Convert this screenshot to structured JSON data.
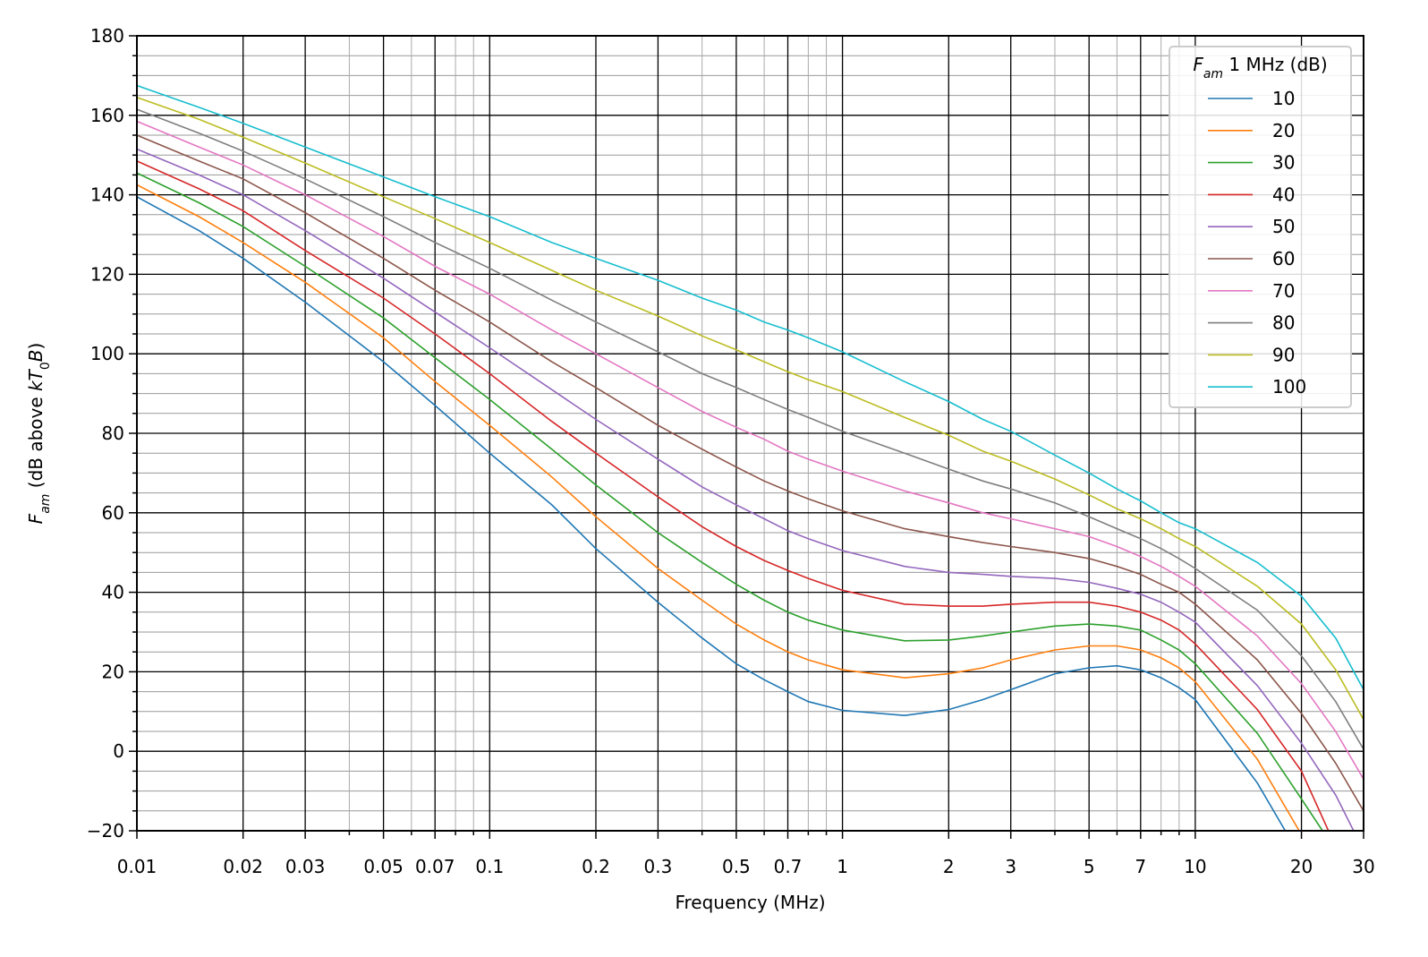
{
  "chart_data": {
    "type": "line",
    "xlabel": "Frequency (MHz)",
    "ylabel": [
      {
        "text": "F",
        "italic": true
      },
      {
        "text": "am",
        "italic": true,
        "sub": true
      },
      {
        "text": " (dB above "
      },
      {
        "text": "kT",
        "italic": true
      },
      {
        "text": "0",
        "sub": true
      },
      {
        "text": "B",
        "italic": true
      },
      {
        "text": ")"
      }
    ],
    "legend_title": [
      {
        "text": "F",
        "italic": true
      },
      {
        "text": "am",
        "italic": true,
        "sub": true
      },
      {
        "text": " 1 MHz (dB)"
      }
    ],
    "legend": "upper right",
    "xscale": "log",
    "grid": true,
    "xlim": [
      0.01,
      30
    ],
    "ylim": [
      -20,
      180
    ],
    "xticks": [
      0.01,
      0.02,
      0.03,
      0.05,
      0.07,
      0.1,
      0.2,
      0.3,
      0.5,
      0.7,
      1,
      2,
      3,
      5,
      7,
      10,
      20,
      30
    ],
    "xminor": [
      0.04,
      0.06,
      0.08,
      0.09,
      0.4,
      0.6,
      0.8,
      0.9,
      4,
      6,
      8,
      9
    ],
    "yticks": [
      {
        "value": -20,
        "label": "−20"
      },
      0,
      20,
      40,
      60,
      80,
      100,
      120,
      140,
      160,
      180
    ],
    "yminor": [
      -15,
      -10,
      -5,
      5,
      10,
      15,
      25,
      30,
      35,
      45,
      50,
      55,
      65,
      70,
      75,
      85,
      90,
      95,
      105,
      110,
      115,
      125,
      130,
      135,
      145,
      150,
      155,
      165,
      170,
      175
    ],
    "x": [
      0.01,
      0.015,
      0.02,
      0.03,
      0.05,
      0.07,
      0.1,
      0.15,
      0.2,
      0.3,
      0.4,
      0.5,
      0.6,
      0.7,
      0.8,
      1,
      1.5,
      2,
      2.5,
      3,
      4,
      5,
      6,
      7,
      8,
      9,
      10,
      15,
      20,
      25,
      30
    ],
    "series": [
      {
        "name": "10",
        "color": "#1f77b4",
        "values": [
          139.5,
          131,
          124,
          113,
          98,
          87,
          75,
          62,
          51,
          37.5,
          28.5,
          22,
          18,
          15,
          12.5,
          10.3,
          9,
          10.5,
          13,
          15.5,
          19.5,
          21,
          21.5,
          20.5,
          18.5,
          16,
          13,
          -8,
          -27,
          null,
          null
        ]
      },
      {
        "name": "20",
        "color": "#ff7f0e",
        "values": [
          142.5,
          134.5,
          128,
          118,
          104,
          93,
          82,
          69,
          59,
          46,
          38,
          32,
          28,
          25,
          23,
          20.5,
          18.5,
          19.5,
          21,
          23,
          25.5,
          26.5,
          26.5,
          25.5,
          23.5,
          21,
          17.5,
          -2,
          -21,
          null,
          null
        ]
      },
      {
        "name": "30",
        "color": "#2ca02c",
        "values": [
          145.5,
          138,
          132,
          122,
          109,
          99,
          88.5,
          76,
          67,
          55,
          47.5,
          42,
          38,
          35,
          33,
          30.5,
          27.8,
          28,
          29,
          30,
          31.5,
          32,
          31.5,
          30.5,
          28,
          25.5,
          22,
          4.5,
          -12,
          -25,
          null
        ]
      },
      {
        "name": "40",
        "color": "#d62728",
        "values": [
          148.5,
          141.5,
          136,
          126,
          114,
          105,
          95,
          83,
          75,
          64,
          56.5,
          51.5,
          48,
          45.5,
          43.5,
          40.5,
          37,
          36.5,
          36.5,
          37,
          37.5,
          37.5,
          36.5,
          35,
          33,
          30.5,
          27,
          10.5,
          -5,
          -24,
          null
        ]
      },
      {
        "name": "50",
        "color": "#9467bd",
        "values": [
          151.5,
          145,
          140,
          131,
          119,
          110.5,
          101.5,
          91,
          83.5,
          73.5,
          66.5,
          62,
          58.5,
          55.5,
          53.5,
          50.5,
          46.5,
          45,
          44.5,
          44,
          43.5,
          42.5,
          41,
          39.5,
          37.5,
          35,
          32.5,
          16.5,
          2,
          -11,
          -25
        ]
      },
      {
        "name": "60",
        "color": "#8c564b",
        "values": [
          155,
          148.5,
          144,
          135.5,
          124,
          116,
          108,
          98,
          91.5,
          82,
          76,
          71.5,
          68,
          65.5,
          63.5,
          60.5,
          56,
          54,
          52.5,
          51.5,
          50,
          48.5,
          46.5,
          44.5,
          42,
          40,
          37,
          23,
          9.5,
          -3,
          -15
        ]
      },
      {
        "name": "70",
        "color": "#e377c2",
        "values": [
          158.5,
          152,
          147.5,
          140,
          129.5,
          122,
          115,
          106,
          100,
          91.5,
          85.5,
          81.5,
          78.5,
          75.5,
          73.5,
          70.5,
          65.5,
          62.5,
          60,
          58.5,
          56,
          54,
          51.5,
          49,
          46.5,
          44,
          41.5,
          29,
          17,
          5,
          -7
        ]
      },
      {
        "name": "80",
        "color": "#7f7f7f",
        "values": [
          161.5,
          155.5,
          151,
          144,
          134.5,
          128,
          121.5,
          113.5,
          108,
          100.5,
          95,
          91.5,
          88.5,
          86,
          84,
          80.5,
          75,
          71,
          68,
          66,
          62.5,
          59,
          56,
          53.5,
          51,
          48.5,
          46,
          35.5,
          24,
          12.5,
          0.5
        ]
      },
      {
        "name": "90",
        "color": "#bcbd22",
        "values": [
          164.5,
          159,
          154.5,
          148,
          139.5,
          134,
          128,
          121,
          116,
          109.5,
          104.5,
          101,
          98,
          95.5,
          93.5,
          90.5,
          84,
          79.5,
          75.5,
          73,
          68.5,
          64.5,
          61,
          58.5,
          56,
          53.5,
          51.5,
          41.5,
          32,
          20.5,
          8
        ]
      },
      {
        "name": "100",
        "color": "#17becf",
        "values": [
          167.5,
          162,
          158,
          152,
          144.5,
          139.5,
          134.5,
          128,
          124,
          118.5,
          114,
          111,
          108,
          106,
          104,
          100.5,
          93,
          88,
          83.5,
          80.5,
          74.5,
          70,
          66,
          63,
          60,
          57.5,
          56,
          47.5,
          39,
          28.5,
          15.5
        ]
      }
    ]
  }
}
